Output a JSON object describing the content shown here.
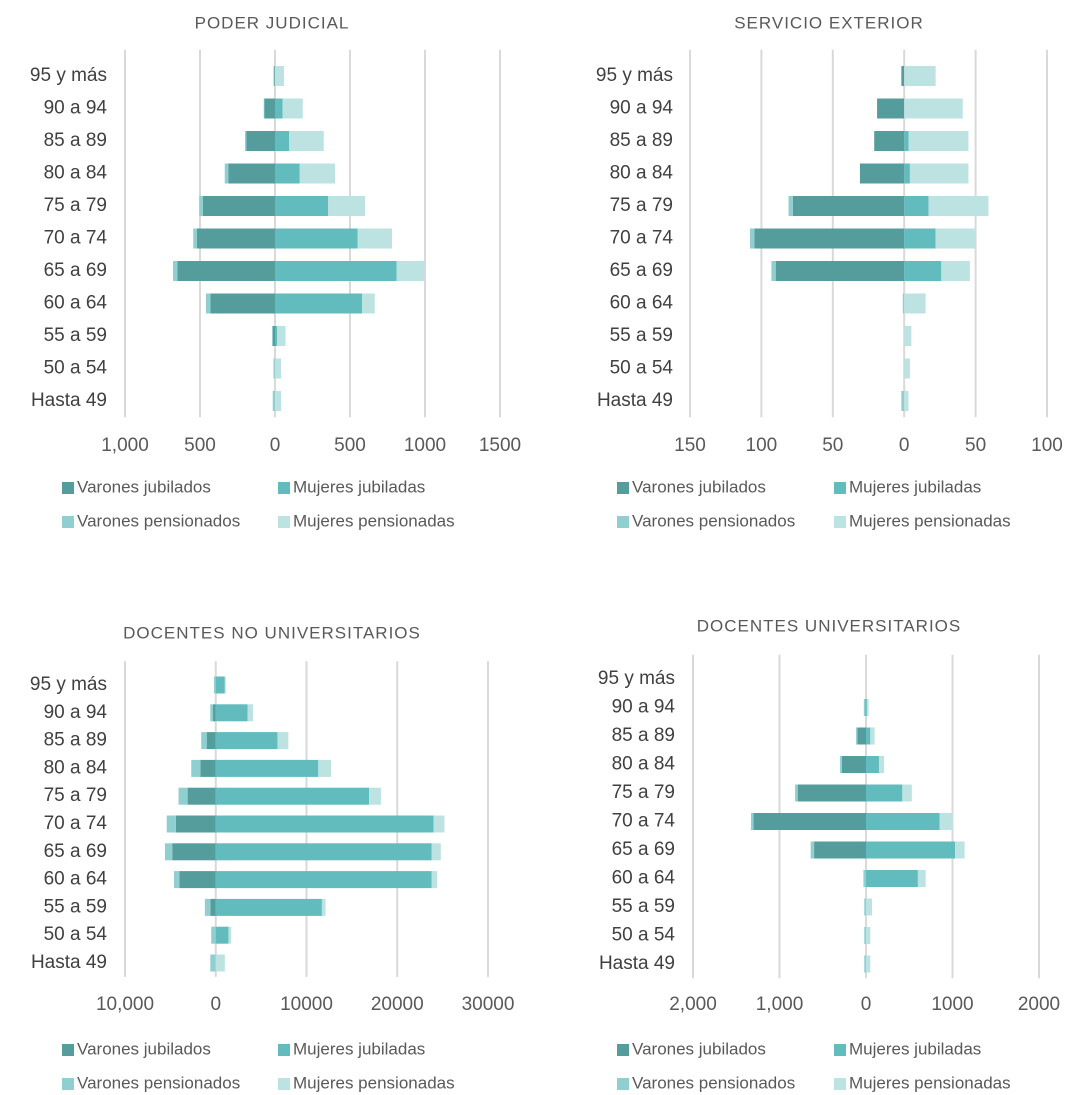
{
  "colors": {
    "varones_jubilados": "#559d9c",
    "mujeres_jubiladas": "#62bcbd",
    "varones_pensionados": "#8fcfd0",
    "mujeres_pensionadas": "#bde2e2",
    "gridline": "#d9d9d9",
    "text": "#595959"
  },
  "age_groups": [
    "95 y más",
    "90 a 94",
    "85 a 89",
    "80 a 84",
    "75 a 79",
    "70 a 74",
    "65 a 69",
    "60 a 64",
    "55 a 59",
    "50 a 54",
    "Hasta 49"
  ],
  "legend": [
    "Varones jubilados",
    "Mujeres jubiladas",
    "Varones pensionados",
    "Mujeres pensionadas"
  ],
  "chart_data": [
    {
      "type": "bar",
      "orientation": "horizontal-stacked-population-pyramid",
      "title": "PODER JUDICIAL",
      "categories": [
        "95 y más",
        "90 a 94",
        "85 a 89",
        "80 a 84",
        "75 a 79",
        "70 a 74",
        "65 a 69",
        "60 a 64",
        "55 a 59",
        "50 a 54",
        "Hasta 49"
      ],
      "xlim": [
        -1000,
        1500
      ],
      "xticks": [
        -1000,
        -500,
        0,
        500,
        1000,
        1500
      ],
      "xtick_labels": [
        "1,000",
        "500",
        "0",
        "500",
        "1000",
        "1500"
      ],
      "grid": true,
      "legend_position": "bottom",
      "series": [
        {
          "name": "Varones jubilados",
          "side": "left",
          "values": [
            5,
            70,
            190,
            310,
            480,
            520,
            650,
            430,
            15,
            0,
            0
          ]
        },
        {
          "name": "Varones pensionados",
          "side": "left",
          "values": [
            5,
            5,
            10,
            25,
            25,
            25,
            30,
            30,
            5,
            10,
            15
          ]
        },
        {
          "name": "Mujeres jubiladas",
          "side": "right",
          "values": [
            0,
            50,
            95,
            165,
            355,
            550,
            810,
            580,
            15,
            0,
            0
          ]
        },
        {
          "name": "Mujeres pensionadas",
          "side": "right",
          "values": [
            60,
            135,
            230,
            235,
            245,
            230,
            185,
            85,
            55,
            40,
            40
          ]
        }
      ]
    },
    {
      "type": "bar",
      "orientation": "horizontal-stacked-population-pyramid",
      "title": "SERVICIO EXTERIOR",
      "categories": [
        "95 y más",
        "90 a 94",
        "85 a 89",
        "80 a 84",
        "75 a 79",
        "70 a 74",
        "65 a 69",
        "60 a 64",
        "55 a 59",
        "50 a 54",
        "Hasta 49"
      ],
      "xlim": [
        -150,
        100
      ],
      "xticks": [
        -150,
        -100,
        -50,
        0,
        50,
        100
      ],
      "xtick_labels": [
        "150",
        "100",
        "50",
        "0",
        "50",
        "100"
      ],
      "grid": true,
      "legend_position": "bottom",
      "series": [
        {
          "name": "Varones jubilados",
          "side": "left",
          "values": [
            2,
            19,
            21,
            31,
            78,
            105,
            90,
            0,
            0,
            0,
            0
          ]
        },
        {
          "name": "Varones pensionados",
          "side": "left",
          "values": [
            0,
            0,
            0,
            0,
            3,
            3,
            3,
            1,
            0,
            0,
            2
          ]
        },
        {
          "name": "Mujeres jubiladas",
          "side": "right",
          "values": [
            0,
            0,
            3,
            4,
            17,
            22,
            26,
            0,
            0,
            0,
            0
          ]
        },
        {
          "name": "Mujeres pensionadas",
          "side": "right",
          "values": [
            22,
            41,
            42,
            41,
            42,
            28,
            20,
            15,
            5,
            4,
            3
          ]
        }
      ]
    },
    {
      "type": "bar",
      "orientation": "horizontal-stacked-population-pyramid",
      "title": "DOCENTES NO UNIVERSITARIOS",
      "categories": [
        "95 y más",
        "90 a 94",
        "85 a 89",
        "80 a 84",
        "75 a 79",
        "70 a 74",
        "65 a 69",
        "60 a 64",
        "55 a 59",
        "50 a 54",
        "Hasta 49"
      ],
      "xlim": [
        -10000,
        30000
      ],
      "xticks": [
        -10000,
        0,
        10000,
        20000,
        30000
      ],
      "xtick_labels": [
        "10,000",
        "0",
        "10000",
        "20000",
        "30000"
      ],
      "grid": true,
      "legend_position": "bottom",
      "series": [
        {
          "name": "Varones jubilados",
          "side": "left",
          "values": [
            0,
            300,
            1000,
            1700,
            3100,
            4400,
            4800,
            4000,
            600,
            0,
            0
          ]
        },
        {
          "name": "Varones pensionados",
          "side": "left",
          "values": [
            200,
            300,
            600,
            1000,
            1000,
            1000,
            800,
            600,
            600,
            500,
            600
          ]
        },
        {
          "name": "Mujeres jubiladas",
          "side": "right",
          "values": [
            1000,
            3500,
            6800,
            11300,
            16900,
            24000,
            23800,
            23800,
            11700,
            1400,
            0
          ]
        },
        {
          "name": "Mujeres pensionadas",
          "side": "right",
          "values": [
            100,
            600,
            1200,
            1400,
            1300,
            1200,
            1000,
            600,
            400,
            300,
            1000
          ]
        }
      ]
    },
    {
      "type": "bar",
      "orientation": "horizontal-stacked-population-pyramid",
      "title": "DOCENTES UNIVERSITARIOS",
      "categories": [
        "95 y más",
        "90 a 94",
        "85 a 89",
        "80 a 84",
        "75 a 79",
        "70 a 74",
        "65 a 69",
        "60 a 64",
        "55 a 59",
        "50 a 54",
        "Hasta 49"
      ],
      "xlim": [
        -2000,
        2000
      ],
      "xticks": [
        -2000,
        -1000,
        0,
        1000,
        2000
      ],
      "xtick_labels": [
        "2,000",
        "1,000",
        "0",
        "1000",
        "2000"
      ],
      "grid": true,
      "legend_position": "bottom",
      "series": [
        {
          "name": "Varones jubilados",
          "side": "left",
          "values": [
            0,
            5,
            100,
            280,
            790,
            1300,
            600,
            0,
            0,
            0,
            0
          ]
        },
        {
          "name": "Varones pensionados",
          "side": "left",
          "values": [
            0,
            20,
            15,
            20,
            30,
            30,
            40,
            30,
            20,
            20,
            20
          ]
        },
        {
          "name": "Mujeres jubiladas",
          "side": "right",
          "values": [
            0,
            10,
            50,
            150,
            420,
            850,
            1030,
            600,
            0,
            0,
            0
          ]
        },
        {
          "name": "Mujeres pensionadas",
          "side": "right",
          "values": [
            0,
            20,
            50,
            60,
            110,
            150,
            110,
            90,
            70,
            50,
            50
          ]
        }
      ]
    }
  ]
}
